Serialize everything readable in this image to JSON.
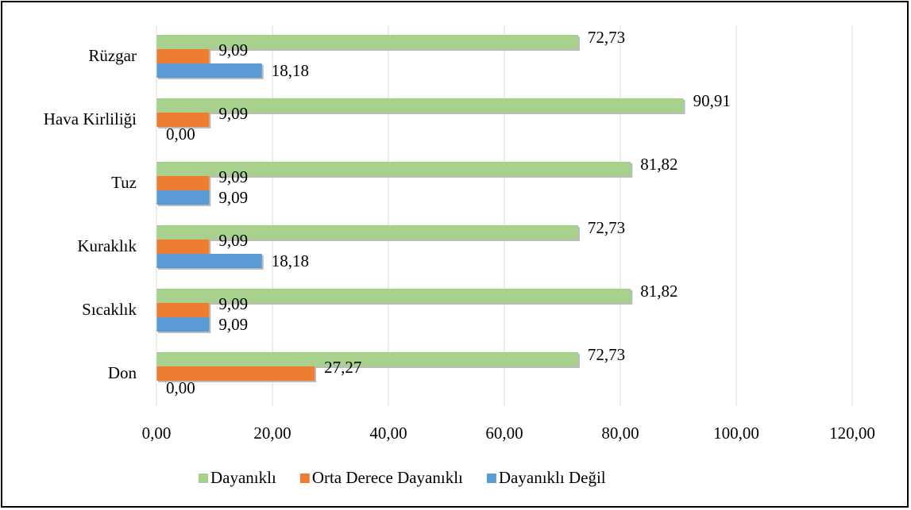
{
  "chart_data": {
    "type": "hbar",
    "categories": [
      "Rüzgar",
      "Hava Kirliliği",
      "Tuz",
      "Kuraklık",
      "Sıcaklık",
      "Don"
    ],
    "series": [
      {
        "name": "Dayanıklı",
        "color": "#a9d18e",
        "values": [
          72.73,
          90.91,
          81.82,
          72.73,
          81.82,
          72.73
        ],
        "value_labels": [
          "72,73",
          "90,91",
          "81,82",
          "72,73",
          "81,82",
          "72,73"
        ]
      },
      {
        "name": "Orta Derece Dayanıklı",
        "color": "#ed7d31",
        "values": [
          9.09,
          9.09,
          9.09,
          9.09,
          9.09,
          27.27
        ],
        "value_labels": [
          "9,09",
          "9,09",
          "9,09",
          "9,09",
          "9,09",
          "27,27"
        ]
      },
      {
        "name": "Dayanıklı Değil",
        "color": "#5b9bd5",
        "values": [
          18.18,
          0,
          9.09,
          18.18,
          9.09,
          0
        ],
        "value_labels": [
          "18,18",
          "0,00",
          "9,09",
          "18,18",
          "9,09",
          "0,00"
        ]
      }
    ],
    "xlim": [
      0,
      120
    ],
    "xticks": [
      {
        "value": 0,
        "label": "0,00"
      },
      {
        "value": 20,
        "label": "20,00"
      },
      {
        "value": 40,
        "label": "40,00"
      },
      {
        "value": 60,
        "label": "60,00"
      },
      {
        "value": 80,
        "label": "80,00"
      },
      {
        "value": 100,
        "label": "100,00"
      },
      {
        "value": 120,
        "label": "120,00"
      }
    ],
    "grid": true,
    "legend": "bottom"
  }
}
